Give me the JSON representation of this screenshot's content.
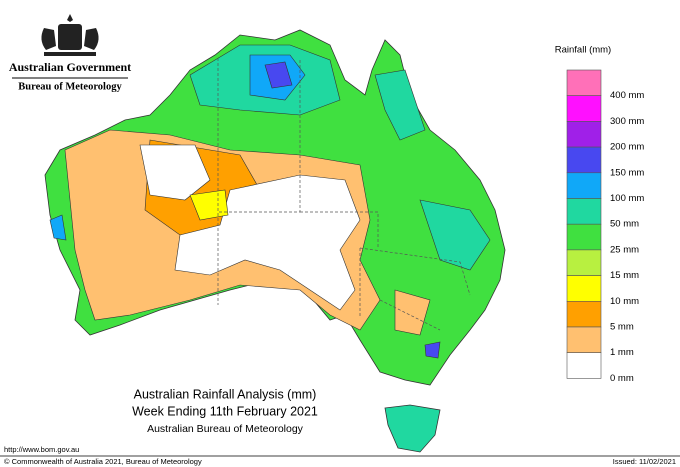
{
  "header": {
    "government": "Australian Government",
    "bureau": "Bureau of Meteorology"
  },
  "legend": {
    "title": "Rainfall (mm)",
    "colors": [
      "#ff70b8",
      "#ff10ff",
      "#a020e8",
      "#4848f0",
      "#10a8f8",
      "#20d8a0",
      "#40e040",
      "#b8f040",
      "#ffff00",
      "#ffa000",
      "#ffc070",
      "#ffffff"
    ],
    "labels": [
      "400 mm",
      "300 mm",
      "200 mm",
      "150 mm",
      "100 mm",
      "50 mm",
      "25 mm",
      "15 mm",
      "10 mm",
      "5 mm",
      "1 mm",
      "0 mm"
    ]
  },
  "map_title": {
    "line1": "Australian Rainfall Analysis (mm)",
    "line2": "Week Ending 11th February 2021",
    "line3": "Australian Bureau of Meteorology"
  },
  "footer": {
    "url": "http://www.bom.gov.au",
    "copyright": "© Commonwealth of Australia 2021, Bureau of Meteorology",
    "issued": "Issued: 11/02/2021"
  }
}
